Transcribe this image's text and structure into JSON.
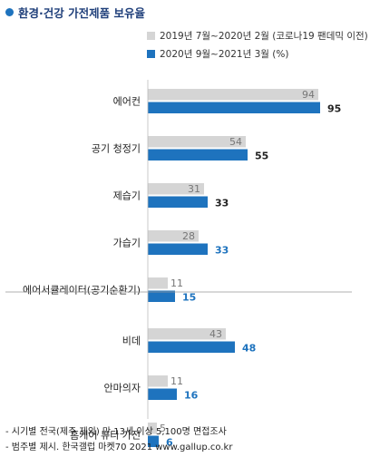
{
  "title": "환경·건강 가전제품 보유율",
  "colors": {
    "series1": "#d5d5d5",
    "series2": "#1e73be",
    "title": "#1f3f7a",
    "divider": "#999999"
  },
  "chart_data": {
    "type": "bar",
    "orientation": "horizontal",
    "categories": [
      "에어컨",
      "공기 청정기",
      "제습기",
      "가습기",
      "에어서큘레이터(공기순환기)",
      "비데",
      "안마의자",
      "홈케어 뷰티 가전"
    ],
    "series": [
      {
        "name": "2019년 7월~2020년 2월 (코로나19 팬데믹 이전)",
        "values": [
          94,
          54,
          31,
          28,
          11,
          43,
          11,
          5
        ]
      },
      {
        "name": "2020년 9월~2021년 3월 (%)",
        "values": [
          95,
          55,
          33,
          33,
          15,
          48,
          16,
          6
        ]
      }
    ],
    "xlim": [
      0,
      100
    ],
    "grid": false,
    "legend": "top-right"
  },
  "footnotes": [
    "- 시기별 전국(제주 제외) 만 13세 이상 5,100명 면접조사",
    "- 범주별 제시. 한국갤럽 마켓70 2021 www.gallup.co.kr"
  ]
}
